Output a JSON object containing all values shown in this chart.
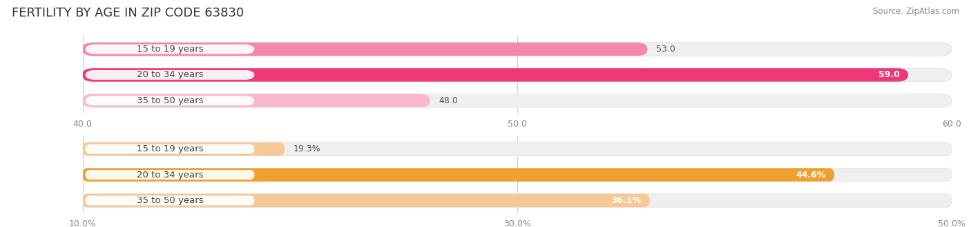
{
  "title": "FERTILITY BY AGE IN ZIP CODE 63830",
  "source": "Source: ZipAtlas.com",
  "top_chart": {
    "categories": [
      "15 to 19 years",
      "20 to 34 years",
      "35 to 50 years"
    ],
    "values": [
      53.0,
      59.0,
      48.0
    ],
    "xlim": [
      40.0,
      60.0
    ],
    "xticks": [
      40.0,
      50.0,
      60.0
    ],
    "bar_colors": [
      "#f588aa",
      "#f03878",
      "#f9b8cc"
    ],
    "bar_bg_color": "#efefef",
    "value_labels": [
      "53.0",
      "59.0",
      "48.0"
    ],
    "val_inside": [
      false,
      true,
      false
    ]
  },
  "bottom_chart": {
    "categories": [
      "15 to 19 years",
      "20 to 34 years",
      "35 to 50 years"
    ],
    "values": [
      19.3,
      44.6,
      36.1
    ],
    "xlim": [
      10.0,
      50.0
    ],
    "xticks": [
      10.0,
      30.0,
      50.0
    ],
    "xtick_labels": [
      "10.0%",
      "30.0%",
      "50.0%"
    ],
    "bar_colors": [
      "#f5c896",
      "#f0a030",
      "#f5c896"
    ],
    "bar_bg_color": "#efefef",
    "value_labels": [
      "19.3%",
      "44.6%",
      "36.1%"
    ],
    "val_inside": [
      false,
      true,
      true
    ]
  },
  "background_color": "#ffffff",
  "bar_height": 0.52,
  "title_fontsize": 13,
  "source_fontsize": 8.5,
  "tick_fontsize": 9,
  "cat_fontsize": 9.5,
  "val_fontsize": 9
}
